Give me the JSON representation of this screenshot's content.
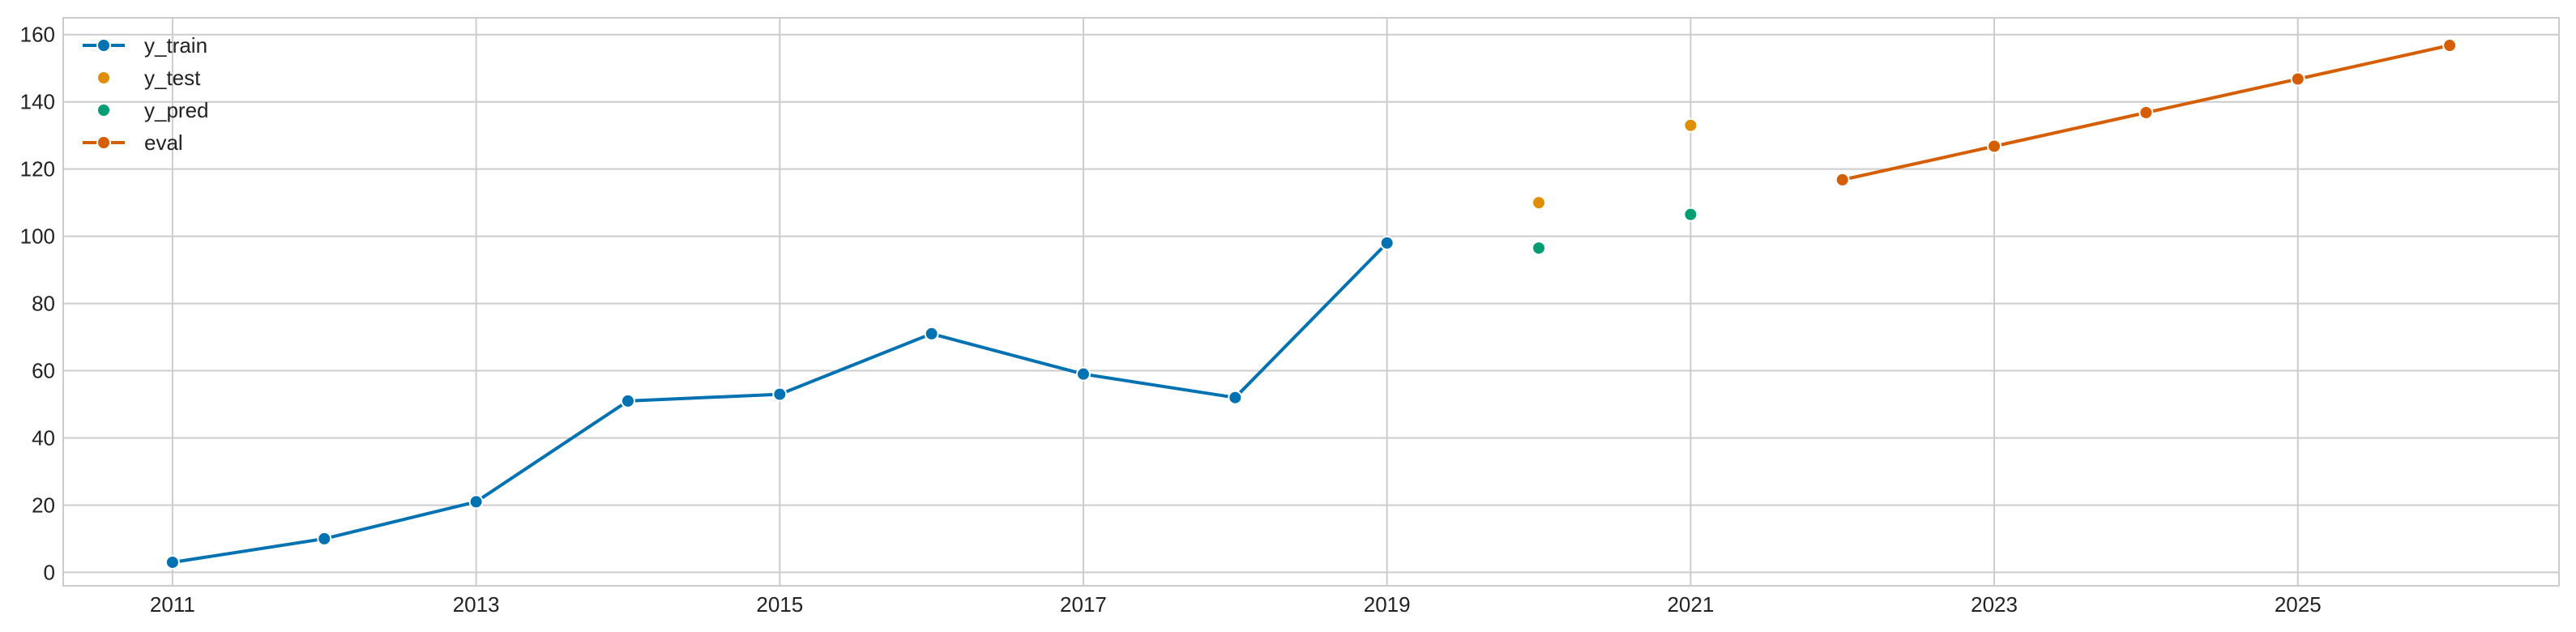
{
  "chart_data": {
    "type": "line",
    "title": "",
    "xlabel": "",
    "ylabel": "",
    "xlim": [
      2010.28,
      2026.72
    ],
    "ylim": [
      -4,
      165
    ],
    "x_ticks": [
      2011,
      2013,
      2015,
      2017,
      2019,
      2021,
      2023,
      2025
    ],
    "y_ticks": [
      0,
      20,
      40,
      60,
      80,
      100,
      120,
      140,
      160
    ],
    "grid": true,
    "legend_position": "top-left",
    "series": [
      {
        "name": "y_train",
        "style": "line+markers",
        "color": "#0072b2",
        "x": [
          2011,
          2012,
          2013,
          2014,
          2015,
          2016,
          2017,
          2018,
          2019
        ],
        "y": [
          3,
          10,
          21,
          51,
          53,
          71,
          59,
          52,
          98
        ]
      },
      {
        "name": "y_test",
        "style": "markers",
        "color": "#de8f05",
        "x": [
          2020,
          2021
        ],
        "y": [
          110,
          133
        ]
      },
      {
        "name": "y_pred",
        "style": "markers",
        "color": "#029e73",
        "x": [
          2020,
          2021
        ],
        "y": [
          96.5,
          106.5
        ]
      },
      {
        "name": "eval",
        "style": "line+markers",
        "color": "#d55e00",
        "x": [
          2022,
          2023,
          2024,
          2025,
          2026
        ],
        "y": [
          116.8,
          126.8,
          136.8,
          146.8,
          156.8
        ]
      }
    ]
  }
}
